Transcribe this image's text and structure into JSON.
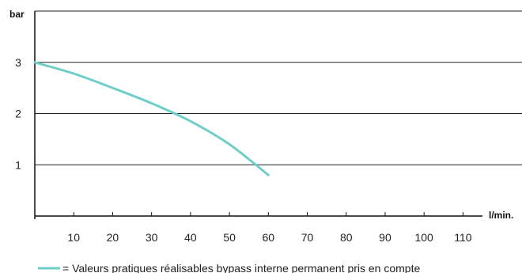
{
  "chart_data": {
    "type": "line",
    "title": "",
    "xlabel": "l/min.",
    "ylabel": "bar",
    "xlim": [
      0,
      115
    ],
    "ylim": [
      0,
      4
    ],
    "xticks": [
      10,
      20,
      30,
      40,
      50,
      60,
      70,
      80,
      90,
      100,
      110
    ],
    "yticks": [
      1,
      2,
      3
    ],
    "grid": "horizontal",
    "legend_position": "bottom",
    "series": [
      {
        "name": "= Valeurs pratiques réalisables bypass interne permanent pris en compte",
        "color": "#6fcfc8",
        "x": [
          0,
          10,
          20,
          30,
          40,
          50,
          60
        ],
        "y": [
          3.0,
          2.78,
          2.5,
          2.2,
          1.85,
          1.4,
          0.8
        ]
      }
    ]
  }
}
